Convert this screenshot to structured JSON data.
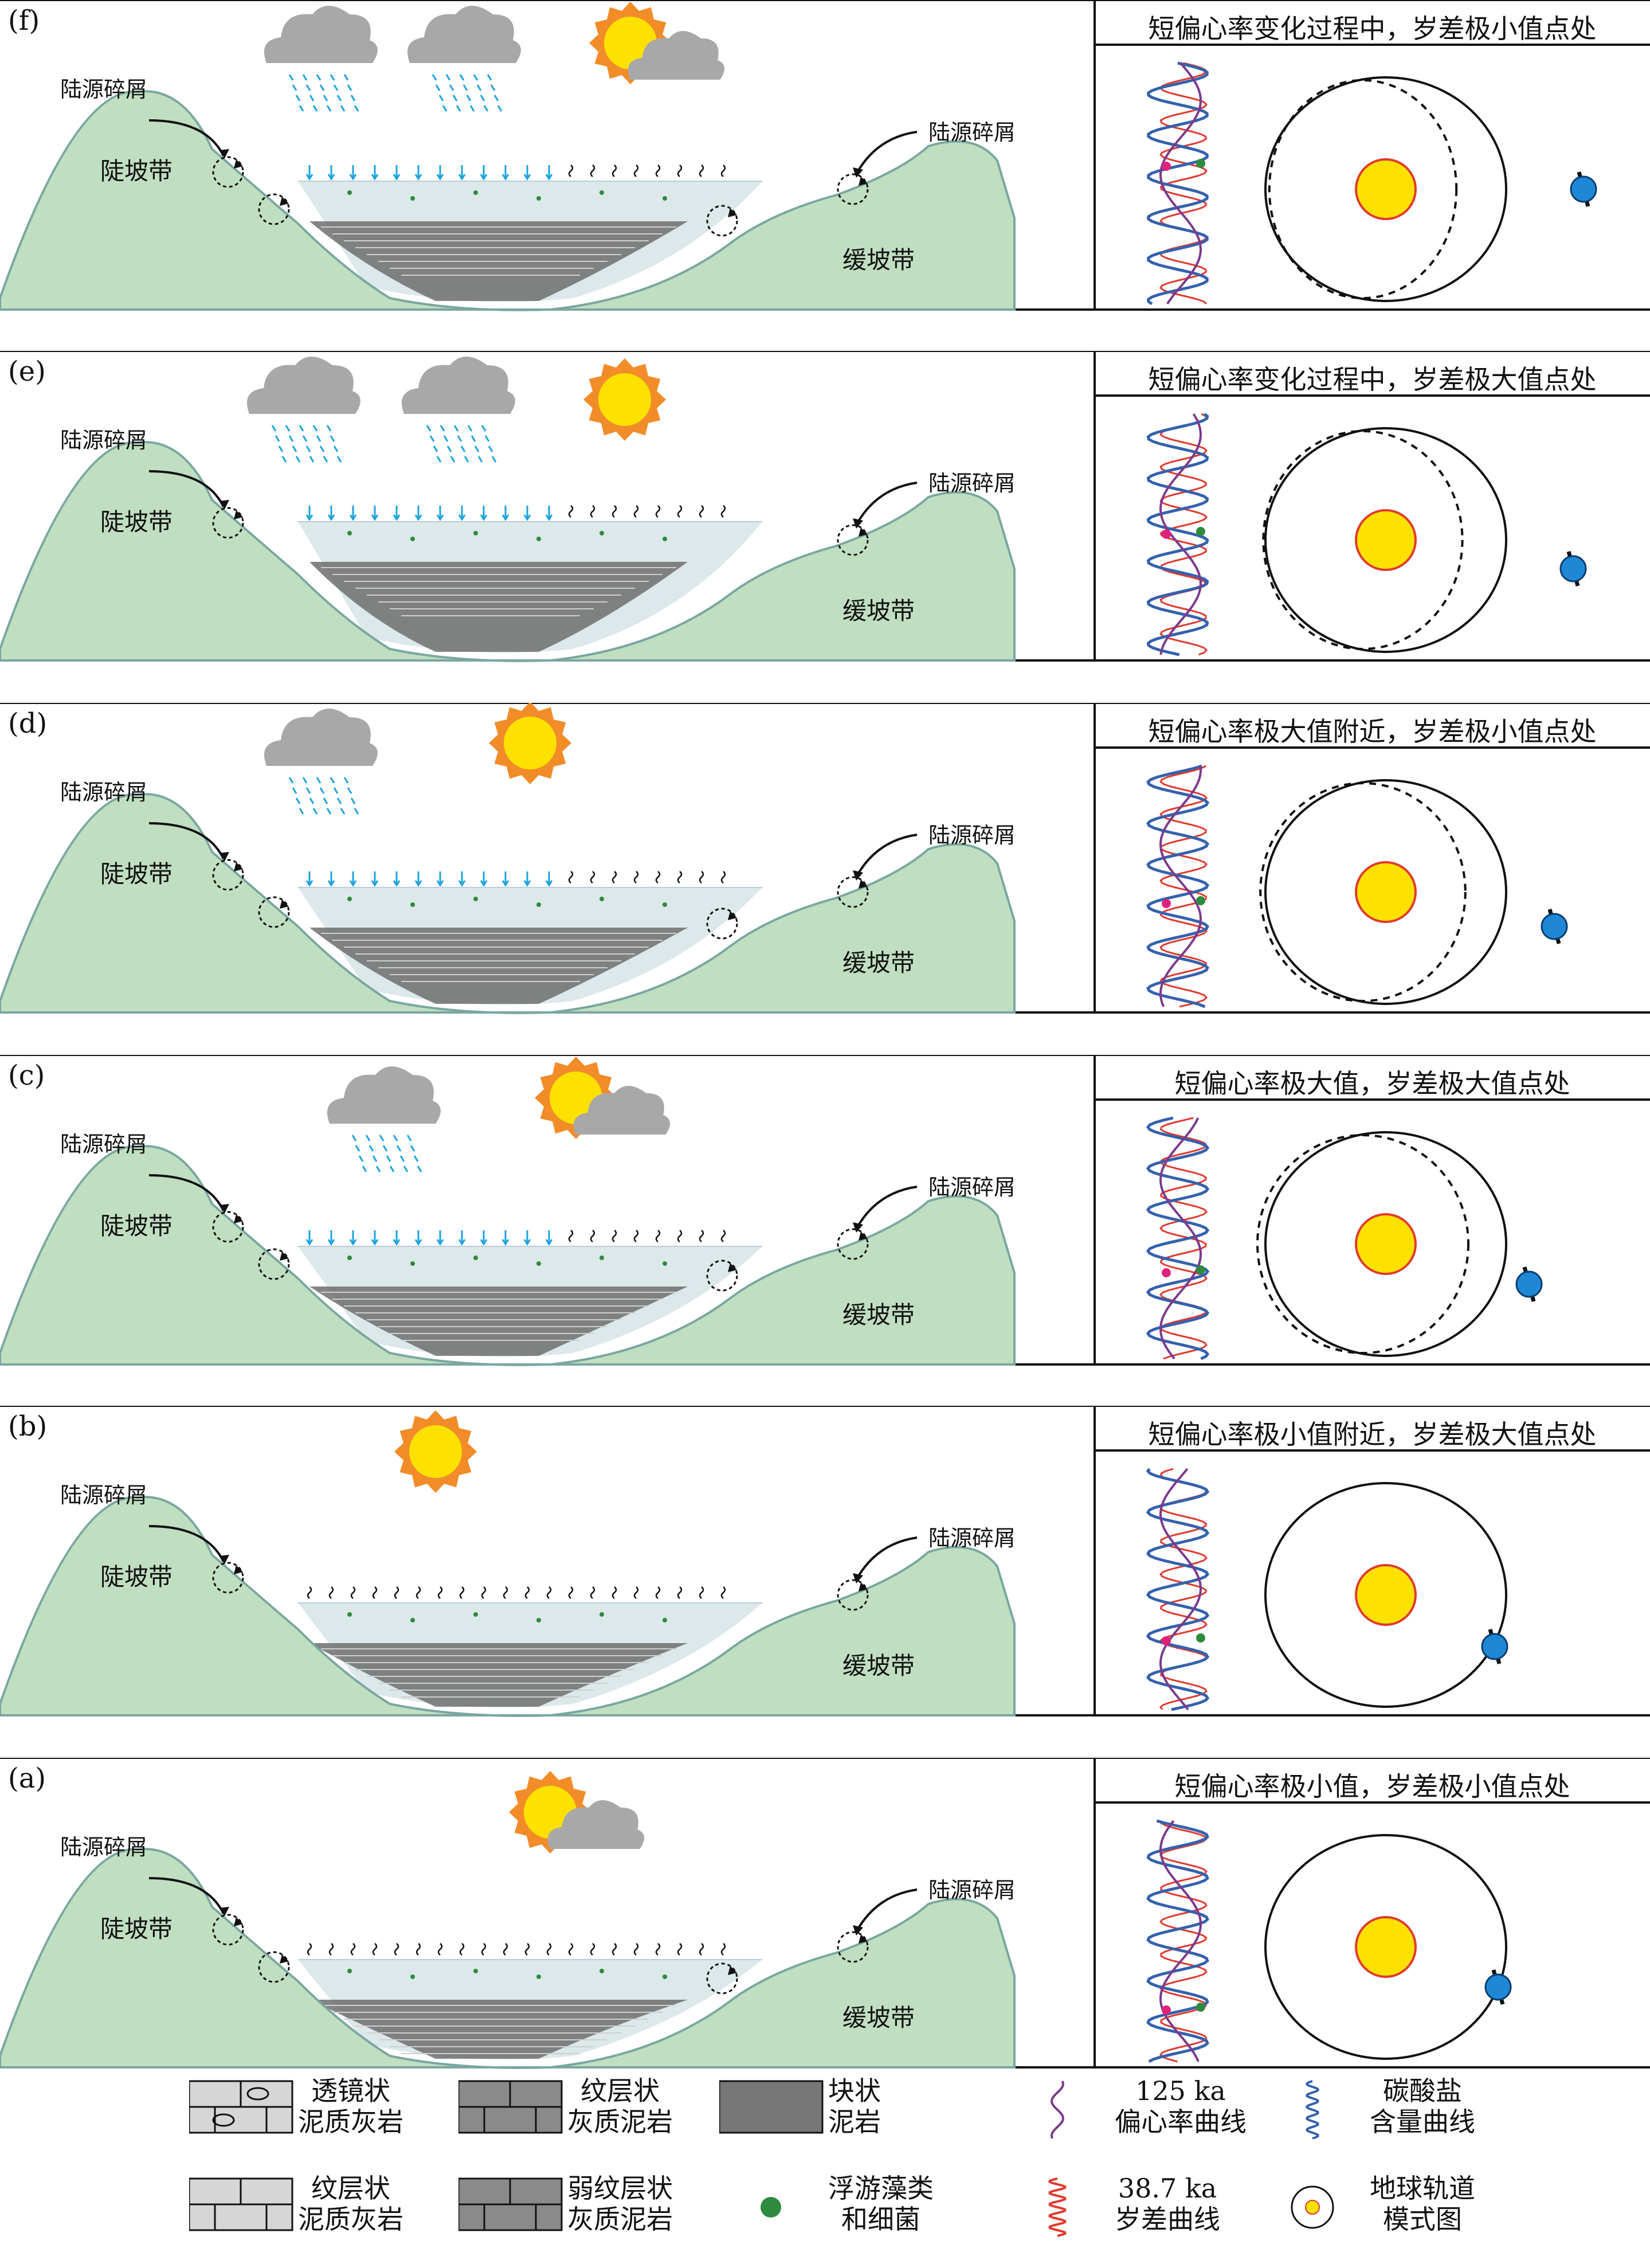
{
  "colors": {
    "hill": "#c0dfc1",
    "hill_edge": "#7aa7a0",
    "water": "#dce8ea",
    "rock": "#6e6e6e",
    "sun": "#ffe100",
    "sun_edge": "#f28c28",
    "earth": "#1e88d6",
    "rain": "#1aa3e0",
    "eccentricity": "#7b3a8c",
    "precession": "#e03a2f",
    "carbonate": "#3561ad",
    "dot_magenta": "#e0227a",
    "dot_green": "#2e8b3e"
  },
  "labels": {
    "debris": "陆源碎屑",
    "steep": "陡坡带",
    "gentle": "缓坡带"
  },
  "panels": [
    {
      "letter": "(f)",
      "caption": "短偏心率变化过程中，岁差极小值点处"
    },
    {
      "letter": "(e)",
      "caption": "短偏心率变化过程中，岁差极大值点处"
    },
    {
      "letter": "(d)",
      "caption": "短偏心率极大值附近，岁差极小值点处"
    },
    {
      "letter": "(c)",
      "caption": "短偏心率极大值，岁差极大值点处"
    },
    {
      "letter": "(b)",
      "caption": "短偏心率极小值附近，岁差极大值点处"
    },
    {
      "letter": "(a)",
      "caption": "短偏心率极小值，岁差极小值点处"
    }
  ],
  "legend": [
    {
      "icon": "lenticular-marl-icon",
      "line1": "透镜状",
      "line2": "泥质灰岩"
    },
    {
      "icon": "laminated-limy-mudstone-icon",
      "line1": "纹层状",
      "line2": "灰质泥岩"
    },
    {
      "icon": "massive-mudstone-icon",
      "line1": "块状",
      "line2": "泥岩"
    },
    {
      "icon": "eccentricity-curve-icon",
      "line1": "125 ka",
      "line2": "偏心率曲线"
    },
    {
      "icon": "carbonate-curve-icon",
      "line1": "碳酸盐",
      "line2": "含量曲线"
    },
    {
      "icon": "laminated-marl-icon",
      "line1": "纹层状",
      "line2": "泥质灰岩"
    },
    {
      "icon": "weakly-laminated-mudstone-icon",
      "line1": "弱纹层状",
      "line2": "灰质泥岩"
    },
    {
      "icon": "plankton-icon",
      "line1": "浮游藻类",
      "line2": "和细菌"
    },
    {
      "icon": "precession-curve-icon",
      "line1": "38.7 ka",
      "line2": "岁差曲线"
    },
    {
      "icon": "orbit-model-icon",
      "line1": "地球轨道",
      "line2": "模式图"
    }
  ]
}
